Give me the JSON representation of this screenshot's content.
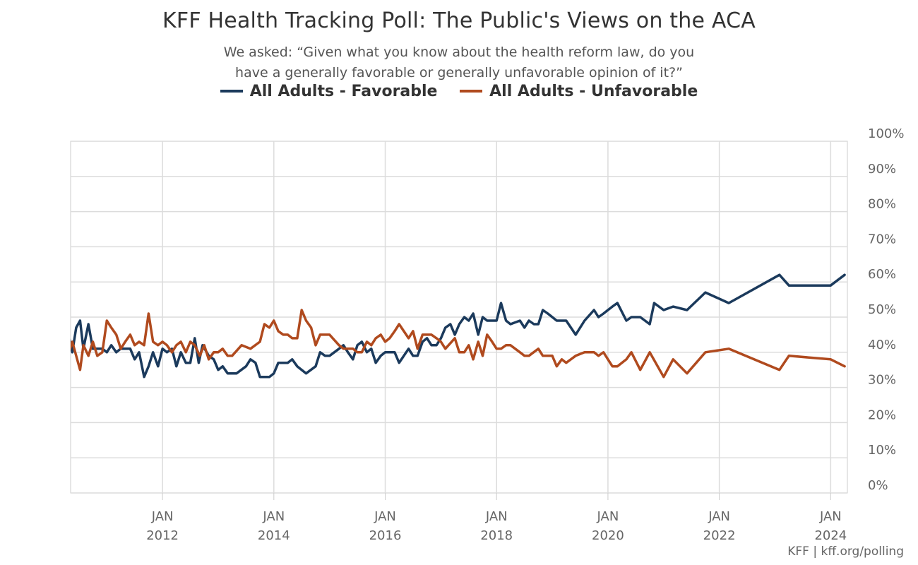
{
  "title": "KFF Health Tracking Poll: The Public's Views on the ACA",
  "subtitle": "We asked: “Given what you know about the health reform law, do you have a generally favorable or generally unfavorable opinion of it?”",
  "credits": "KFF | kff.org/polling",
  "colors": {
    "favorable": "#1b3a5c",
    "unfavorable": "#b04a1e",
    "grid": "#dcdcdc",
    "axis_text": "#666666"
  },
  "chart_data": {
    "type": "line",
    "title": "KFF Health Tracking Poll: The Public's Views on the ACA",
    "xlim": [
      2010.35,
      2024.3
    ],
    "ylim": [
      0,
      100
    ],
    "y_ticks": [
      "0%",
      "10%",
      "20%",
      "30%",
      "40%",
      "50%",
      "60%",
      "70%",
      "80%",
      "90%",
      "100%"
    ],
    "x_ticks": [
      {
        "x": 2012.0,
        "month": "JAN",
        "year": "2012"
      },
      {
        "x": 2014.0,
        "month": "JAN",
        "year": "2014"
      },
      {
        "x": 2016.0,
        "month": "JAN",
        "year": "2016"
      },
      {
        "x": 2018.0,
        "month": "JAN",
        "year": "2018"
      },
      {
        "x": 2020.0,
        "month": "JAN",
        "year": "2020"
      },
      {
        "x": 2022.0,
        "month": "JAN",
        "year": "2022"
      },
      {
        "x": 2024.0,
        "month": "JAN",
        "year": "2024"
      }
    ],
    "grid": true,
    "legend_position": "top-center",
    "series": [
      {
        "name": "All Adults - Favorable",
        "color": "#1b3a5c",
        "points": [
          [
            2010.3,
            46
          ],
          [
            2010.38,
            40
          ],
          [
            2010.45,
            47
          ],
          [
            2010.52,
            49
          ],
          [
            2010.58,
            41
          ],
          [
            2010.67,
            48
          ],
          [
            2010.75,
            41
          ],
          [
            2010.83,
            41
          ],
          [
            2010.92,
            41
          ],
          [
            2011.0,
            40
          ],
          [
            2011.08,
            42
          ],
          [
            2011.17,
            40
          ],
          [
            2011.25,
            41
          ],
          [
            2011.33,
            41
          ],
          [
            2011.42,
            41
          ],
          [
            2011.5,
            38
          ],
          [
            2011.58,
            40
          ],
          [
            2011.67,
            33
          ],
          [
            2011.75,
            36
          ],
          [
            2011.83,
            40
          ],
          [
            2011.92,
            36
          ],
          [
            2012.0,
            41
          ],
          [
            2012.08,
            40
          ],
          [
            2012.17,
            41
          ],
          [
            2012.25,
            36
          ],
          [
            2012.33,
            40
          ],
          [
            2012.42,
            37
          ],
          [
            2012.5,
            37
          ],
          [
            2012.58,
            44
          ],
          [
            2012.65,
            37
          ],
          [
            2012.72,
            42
          ],
          [
            2012.83,
            39
          ],
          [
            2012.92,
            38
          ],
          [
            2013.0,
            35
          ],
          [
            2013.08,
            36
          ],
          [
            2013.17,
            34
          ],
          [
            2013.33,
            34
          ],
          [
            2013.5,
            36
          ],
          [
            2013.58,
            38
          ],
          [
            2013.67,
            37
          ],
          [
            2013.75,
            33
          ],
          [
            2013.83,
            33
          ],
          [
            2013.92,
            33
          ],
          [
            2014.0,
            34
          ],
          [
            2014.08,
            37
          ],
          [
            2014.25,
            37
          ],
          [
            2014.33,
            38
          ],
          [
            2014.42,
            36
          ],
          [
            2014.58,
            34
          ],
          [
            2014.75,
            36
          ],
          [
            2014.83,
            40
          ],
          [
            2014.92,
            39
          ],
          [
            2015.0,
            39
          ],
          [
            2015.17,
            41
          ],
          [
            2015.25,
            42
          ],
          [
            2015.33,
            40
          ],
          [
            2015.42,
            38
          ],
          [
            2015.5,
            42
          ],
          [
            2015.58,
            43
          ],
          [
            2015.67,
            40
          ],
          [
            2015.75,
            41
          ],
          [
            2015.83,
            37
          ],
          [
            2015.92,
            39
          ],
          [
            2016.0,
            40
          ],
          [
            2016.17,
            40
          ],
          [
            2016.25,
            37
          ],
          [
            2016.42,
            41
          ],
          [
            2016.5,
            39
          ],
          [
            2016.58,
            39
          ],
          [
            2016.67,
            43
          ],
          [
            2016.75,
            44
          ],
          [
            2016.83,
            42
          ],
          [
            2016.92,
            42
          ],
          [
            2017.0,
            44
          ],
          [
            2017.08,
            47
          ],
          [
            2017.17,
            48
          ],
          [
            2017.25,
            45
          ],
          [
            2017.33,
            48
          ],
          [
            2017.42,
            50
          ],
          [
            2017.5,
            49
          ],
          [
            2017.58,
            51
          ],
          [
            2017.67,
            45
          ],
          [
            2017.75,
            50
          ],
          [
            2017.83,
            49
          ],
          [
            2017.92,
            49
          ],
          [
            2018.0,
            49
          ],
          [
            2018.08,
            54
          ],
          [
            2018.17,
            49
          ],
          [
            2018.25,
            48
          ],
          [
            2018.42,
            49
          ],
          [
            2018.5,
            47
          ],
          [
            2018.58,
            49
          ],
          [
            2018.67,
            48
          ],
          [
            2018.75,
            48
          ],
          [
            2018.83,
            52
          ],
          [
            2018.92,
            51
          ],
          [
            2019.0,
            50
          ],
          [
            2019.08,
            49
          ],
          [
            2019.25,
            49
          ],
          [
            2019.42,
            45
          ],
          [
            2019.58,
            49
          ],
          [
            2019.75,
            52
          ],
          [
            2019.83,
            50
          ],
          [
            2019.92,
            51
          ],
          [
            2020.0,
            52
          ],
          [
            2020.08,
            53
          ],
          [
            2020.17,
            54
          ],
          [
            2020.33,
            49
          ],
          [
            2020.42,
            50
          ],
          [
            2020.58,
            50
          ],
          [
            2020.75,
            48
          ],
          [
            2020.83,
            54
          ],
          [
            2021.0,
            52
          ],
          [
            2021.17,
            53
          ],
          [
            2021.42,
            52
          ],
          [
            2021.75,
            57
          ],
          [
            2022.17,
            54
          ],
          [
            2023.08,
            62
          ],
          [
            2023.25,
            59
          ],
          [
            2024.0,
            59
          ],
          [
            2024.25,
            62
          ]
        ]
      },
      {
        "name": "All Adults - Unfavorable",
        "color": "#b04a1e",
        "points": [
          [
            2010.3,
            39
          ],
          [
            2010.38,
            43
          ],
          [
            2010.45,
            39
          ],
          [
            2010.52,
            35
          ],
          [
            2010.58,
            42
          ],
          [
            2010.67,
            39
          ],
          [
            2010.75,
            43
          ],
          [
            2010.83,
            39
          ],
          [
            2010.92,
            40
          ],
          [
            2011.0,
            49
          ],
          [
            2011.08,
            47
          ],
          [
            2011.17,
            45
          ],
          [
            2011.25,
            41
          ],
          [
            2011.33,
            43
          ],
          [
            2011.42,
            45
          ],
          [
            2011.5,
            42
          ],
          [
            2011.58,
            43
          ],
          [
            2011.67,
            42
          ],
          [
            2011.75,
            51
          ],
          [
            2011.83,
            43
          ],
          [
            2011.92,
            42
          ],
          [
            2012.0,
            43
          ],
          [
            2012.08,
            42
          ],
          [
            2012.17,
            40
          ],
          [
            2012.25,
            42
          ],
          [
            2012.33,
            43
          ],
          [
            2012.42,
            40
          ],
          [
            2012.5,
            43
          ],
          [
            2012.58,
            42
          ],
          [
            2012.67,
            39
          ],
          [
            2012.75,
            42
          ],
          [
            2012.83,
            38
          ],
          [
            2012.92,
            40
          ],
          [
            2013.0,
            40
          ],
          [
            2013.08,
            41
          ],
          [
            2013.17,
            39
          ],
          [
            2013.25,
            39
          ],
          [
            2013.42,
            42
          ],
          [
            2013.58,
            41
          ],
          [
            2013.75,
            43
          ],
          [
            2013.83,
            48
          ],
          [
            2013.92,
            47
          ],
          [
            2014.0,
            49
          ],
          [
            2014.08,
            46
          ],
          [
            2014.17,
            45
          ],
          [
            2014.25,
            45
          ],
          [
            2014.33,
            44
          ],
          [
            2014.42,
            44
          ],
          [
            2014.5,
            52
          ],
          [
            2014.58,
            49
          ],
          [
            2014.67,
            47
          ],
          [
            2014.75,
            42
          ],
          [
            2014.83,
            45
          ],
          [
            2014.92,
            45
          ],
          [
            2015.0,
            45
          ],
          [
            2015.17,
            42
          ],
          [
            2015.25,
            41
          ],
          [
            2015.33,
            41
          ],
          [
            2015.42,
            41
          ],
          [
            2015.5,
            40
          ],
          [
            2015.58,
            40
          ],
          [
            2015.67,
            43
          ],
          [
            2015.75,
            42
          ],
          [
            2015.83,
            44
          ],
          [
            2015.92,
            45
          ],
          [
            2016.0,
            43
          ],
          [
            2016.08,
            44
          ],
          [
            2016.17,
            46
          ],
          [
            2016.25,
            48
          ],
          [
            2016.42,
            44
          ],
          [
            2016.5,
            46
          ],
          [
            2016.58,
            41
          ],
          [
            2016.67,
            45
          ],
          [
            2016.75,
            45
          ],
          [
            2016.83,
            45
          ],
          [
            2016.92,
            44
          ],
          [
            2017.0,
            43
          ],
          [
            2017.08,
            41
          ],
          [
            2017.25,
            44
          ],
          [
            2017.33,
            40
          ],
          [
            2017.42,
            40
          ],
          [
            2017.5,
            42
          ],
          [
            2017.58,
            38
          ],
          [
            2017.67,
            43
          ],
          [
            2017.75,
            39
          ],
          [
            2017.83,
            45
          ],
          [
            2017.92,
            43
          ],
          [
            2018.0,
            41
          ],
          [
            2018.08,
            41
          ],
          [
            2018.17,
            42
          ],
          [
            2018.25,
            42
          ],
          [
            2018.42,
            40
          ],
          [
            2018.5,
            39
          ],
          [
            2018.58,
            39
          ],
          [
            2018.75,
            41
          ],
          [
            2018.83,
            39
          ],
          [
            2018.92,
            39
          ],
          [
            2019.0,
            39
          ],
          [
            2019.08,
            36
          ],
          [
            2019.17,
            38
          ],
          [
            2019.25,
            37
          ],
          [
            2019.42,
            39
          ],
          [
            2019.58,
            40
          ],
          [
            2019.75,
            40
          ],
          [
            2019.83,
            39
          ],
          [
            2019.92,
            40
          ],
          [
            2020.0,
            38
          ],
          [
            2020.08,
            36
          ],
          [
            2020.17,
            36
          ],
          [
            2020.33,
            38
          ],
          [
            2020.42,
            40
          ],
          [
            2020.58,
            35
          ],
          [
            2020.75,
            40
          ],
          [
            2021.0,
            33
          ],
          [
            2021.17,
            38
          ],
          [
            2021.42,
            34
          ],
          [
            2021.75,
            40
          ],
          [
            2022.17,
            41
          ],
          [
            2023.08,
            35
          ],
          [
            2023.25,
            39
          ],
          [
            2024.0,
            38
          ],
          [
            2024.25,
            36
          ]
        ]
      }
    ]
  }
}
